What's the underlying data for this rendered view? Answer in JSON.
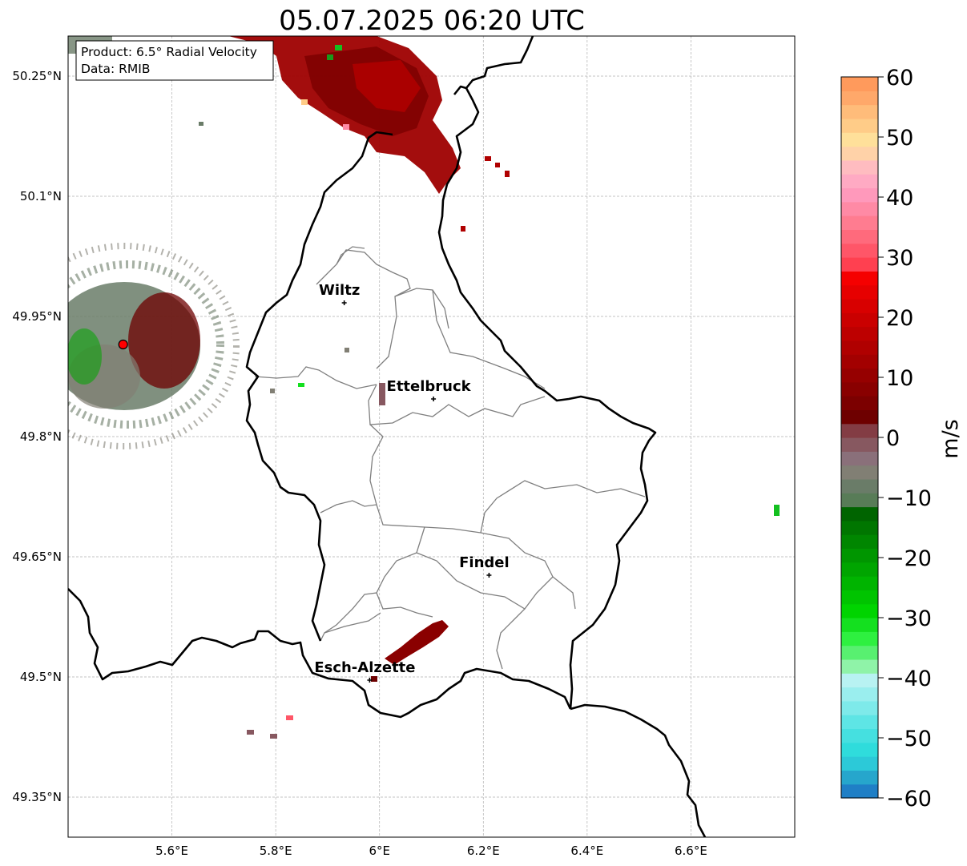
{
  "title": "05.07.2025 06:20 UTC",
  "info_box": {
    "product": "Product: 6.5° Radial Velocity",
    "data_source": "Data: RMIB"
  },
  "map": {
    "lon_range": [
      5.4,
      6.8
    ],
    "lat_range": [
      49.3,
      50.3
    ],
    "lon_ticks": [
      {
        "value": 5.6,
        "label": "5.6°E"
      },
      {
        "value": 5.8,
        "label": "5.8°E"
      },
      {
        "value": 6.0,
        "label": "6°E"
      },
      {
        "value": 6.2,
        "label": "6.2°E"
      },
      {
        "value": 6.4,
        "label": "6.4°E"
      },
      {
        "value": 6.6,
        "label": "6.6°E"
      }
    ],
    "lat_ticks": [
      {
        "value": 50.25,
        "label": "50.25°N"
      },
      {
        "value": 50.1,
        "label": "50.1°N"
      },
      {
        "value": 49.95,
        "label": "49.95°N"
      },
      {
        "value": 49.8,
        "label": "49.8°N"
      },
      {
        "value": 49.65,
        "label": "49.65°N"
      },
      {
        "value": 49.5,
        "label": "49.5°N"
      },
      {
        "value": 49.35,
        "label": "49.35°N"
      }
    ],
    "gridlines": true,
    "radar_site": {
      "lon": 5.506,
      "lat": 49.915,
      "marker_color": "#ff0000"
    },
    "cities": [
      {
        "name": "Wiltz",
        "lon": 5.932,
        "lat": 49.967
      },
      {
        "name": "Ettelbruck",
        "lon": 6.104,
        "lat": 49.847
      },
      {
        "name": "Findel",
        "lon": 6.211,
        "lat": 49.627
      },
      {
        "name": "Esch-Alzette",
        "lon": 5.981,
        "lat": 49.496
      }
    ]
  },
  "colorbar": {
    "label": "m/s",
    "min": -60,
    "max": 60,
    "ticks": [
      {
        "value": 60,
        "label": "60"
      },
      {
        "value": 50,
        "label": "50"
      },
      {
        "value": 40,
        "label": "40"
      },
      {
        "value": 30,
        "label": "30"
      },
      {
        "value": 20,
        "label": "20"
      },
      {
        "value": 10,
        "label": "10"
      },
      {
        "value": 0,
        "label": "0"
      },
      {
        "value": -10,
        "label": "−10"
      },
      {
        "value": -20,
        "label": "−20"
      },
      {
        "value": -30,
        "label": "−30"
      },
      {
        "value": -40,
        "label": "−40"
      },
      {
        "value": -50,
        "label": "−50"
      },
      {
        "value": -60,
        "label": "−60"
      }
    ],
    "colors_bottom_to_top": [
      "#1f7fc6",
      "#26a6cc",
      "#2cc9d8",
      "#2fdcdc",
      "#45e0e0",
      "#5ee5e5",
      "#7eeaea",
      "#9aeeee",
      "#b8f2f2",
      "#8ff3a8",
      "#58f070",
      "#2ef040",
      "#14e01f",
      "#00d400",
      "#00c400",
      "#00b400",
      "#00a500",
      "#009600",
      "#008600",
      "#007600",
      "#006400",
      "#587c57",
      "#6a7c68",
      "#817f74",
      "#8a707a",
      "#875860",
      "#833c44",
      "#6e0000",
      "#7c0000",
      "#890000",
      "#960000",
      "#a30000",
      "#b00000",
      "#bd0000",
      "#ca0000",
      "#d80000",
      "#e60000",
      "#f50000",
      "#ff4050",
      "#ff5668",
      "#ff6a7c",
      "#ff7c90",
      "#ff8aa5",
      "#ff99bb",
      "#ffaac3",
      "#ffbcc0",
      "#ffd2a8",
      "#ffe09a",
      "#ffcc88",
      "#ffbc7a",
      "#ffa86a",
      "#ff9a5c"
    ]
  }
}
